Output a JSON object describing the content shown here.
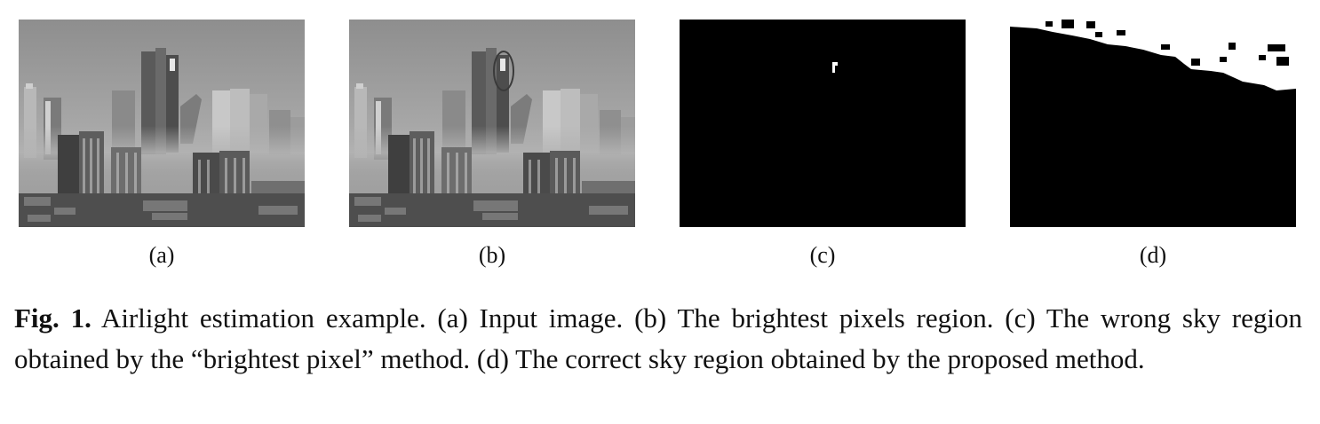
{
  "figure": {
    "panels": [
      {
        "id": "a",
        "label": "(a)",
        "content": "hazy city skyline, grayscale"
      },
      {
        "id": "b",
        "label": "(b)",
        "content": "same skyline with brightest-pixel region circled"
      },
      {
        "id": "c",
        "label": "(c)",
        "content": "black mask with a tiny white sky region"
      },
      {
        "id": "d",
        "label": "(d)",
        "content": "black mask with white sky region along top edge"
      }
    ],
    "caption_label": "Fig. 1.",
    "caption_text": " Airlight estimation example. (a) Input image. (b) The brightest pixels region. (c) The wrong sky region obtained by the “brightest pixel” method. (d) The correct sky region obtained by the proposed method."
  },
  "colors": {
    "mask_foreground": "#ffffff",
    "mask_background": "#000000",
    "haze": "#a6a6a6",
    "annotation_circle": "#3a3a3a"
  }
}
